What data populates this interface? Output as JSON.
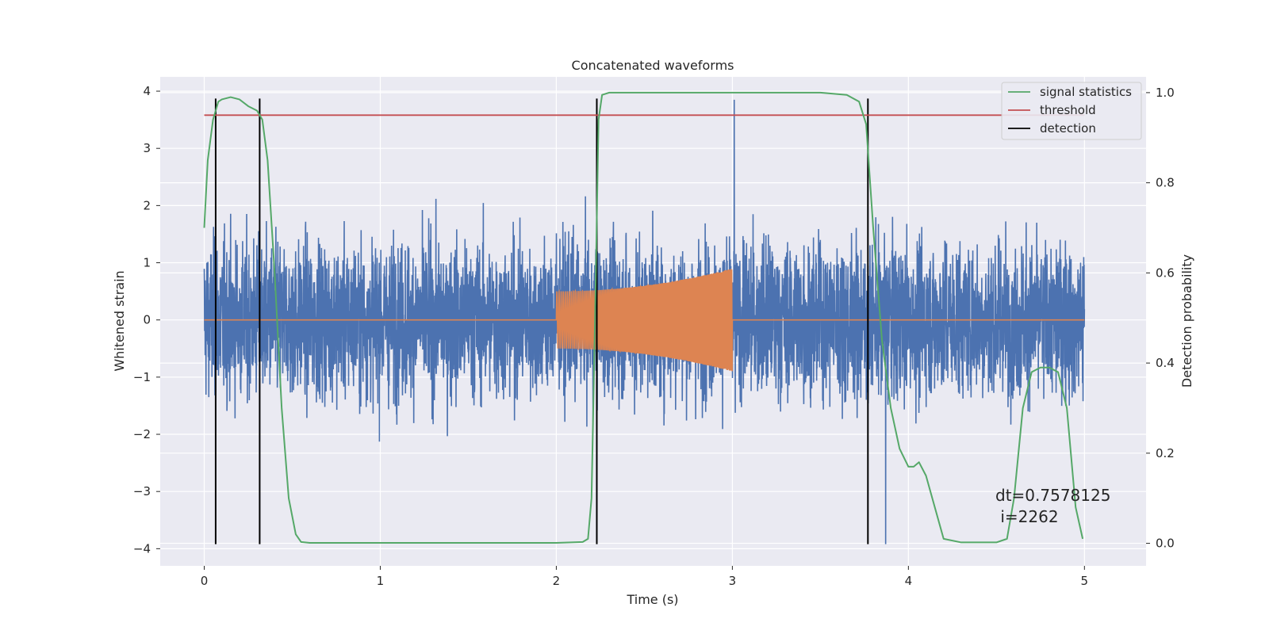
{
  "chart_data": {
    "type": "line",
    "title": "Concatenated waveforms",
    "xlabel": "Time (s)",
    "ylabel_left": "Whitened strain",
    "ylabel_right": "Detection probability",
    "xlim": [
      -0.25,
      5.35
    ],
    "ylim_left": [
      -4.3,
      4.25
    ],
    "ylim_right": [
      -0.05,
      1.035
    ],
    "xticks": [
      "0",
      "1",
      "2",
      "3",
      "4",
      "5"
    ],
    "yticks_left": [
      "4",
      "3",
      "2",
      "1",
      "0",
      "−1",
      "−2",
      "−3",
      "−4"
    ],
    "yticks_right": [
      "1.0",
      "0.8",
      "0.6",
      "0.4",
      "0.2",
      "0.0"
    ],
    "grid": true,
    "legend_position": "top-right",
    "colors": {
      "background": "#eaeaf2",
      "strain": "#4c72b0",
      "injection": "#dd8452",
      "signal": "#55a868",
      "threshold": "#c44e52",
      "detection": "#000000"
    },
    "series": [
      {
        "name": "signal statistics",
        "axis": "right",
        "x": [
          0,
          0.02,
          0.05,
          0.08,
          0.1,
          0.15,
          0.2,
          0.25,
          0.3,
          0.33,
          0.36,
          0.4,
          0.44,
          0.48,
          0.52,
          0.55,
          0.6,
          1.0,
          1.5,
          2.0,
          2.15,
          2.18,
          2.2,
          2.22,
          2.24,
          2.26,
          2.3,
          2.5,
          3.0,
          3.5,
          3.65,
          3.72,
          3.76,
          3.8,
          3.85,
          3.9,
          3.95,
          4.0,
          4.03,
          4.06,
          4.1,
          4.15,
          4.2,
          4.3,
          4.5,
          4.56,
          4.6,
          4.65,
          4.7,
          4.75,
          4.8,
          4.85,
          4.9,
          4.95,
          4.99
        ],
        "values": [
          0.7,
          0.85,
          0.94,
          0.98,
          0.985,
          0.99,
          0.985,
          0.97,
          0.96,
          0.94,
          0.85,
          0.6,
          0.3,
          0.1,
          0.02,
          0.003,
          0.001,
          0.001,
          0.001,
          0.001,
          0.003,
          0.01,
          0.1,
          0.5,
          0.94,
          0.995,
          1.0,
          1.0,
          1.0,
          1.0,
          0.995,
          0.98,
          0.93,
          0.7,
          0.45,
          0.3,
          0.21,
          0.17,
          0.17,
          0.18,
          0.15,
          0.08,
          0.01,
          0.002,
          0.002,
          0.01,
          0.1,
          0.3,
          0.38,
          0.39,
          0.39,
          0.38,
          0.3,
          0.08,
          0.01
        ]
      },
      {
        "name": "threshold",
        "axis": "right",
        "x": [
          0,
          5
        ],
        "values": [
          0.95,
          0.95
        ]
      },
      {
        "name": "detection",
        "axis": "left",
        "type": "vlines",
        "x": [
          0.065,
          0.315,
          2.23,
          3.77
        ],
        "y_range": [
          -3.92,
          3.87
        ]
      },
      {
        "axis": "left",
        "type": "noise",
        "x_range": [
          0,
          5
        ],
        "typical_peak": 2.0,
        "max_values": [
          3.85,
          -3.92
        ]
      },
      {
        "axis": "left",
        "type": "chirp",
        "x_range": [
          2.0,
          3.0
        ],
        "amplitude_start": 0.5,
        "amplitude_end": 0.9,
        "baseline": 0
      }
    ],
    "annotation": {
      "lines": [
        "dt=0.7578125",
        " i=2262"
      ],
      "x": 4.5,
      "y": 0.12
    }
  }
}
